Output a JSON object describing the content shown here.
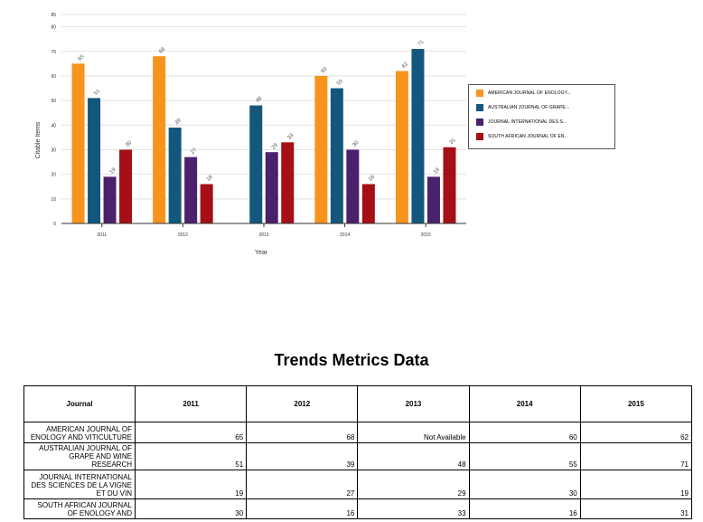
{
  "chart_data": {
    "type": "bar",
    "title": "",
    "xlabel": "Year",
    "ylabel": "Citable Items",
    "ylim": [
      0,
      85
    ],
    "yticks": [
      0,
      10,
      20,
      30,
      40,
      50,
      60,
      70,
      80,
      85
    ],
    "categories": [
      "2011",
      "2012",
      "2013",
      "2014",
      "2015"
    ],
    "legend_position": "right",
    "grid": true,
    "series": [
      {
        "name": "AMERICAN JOURNAL OF ENOLOGY...",
        "color": "#f7941d",
        "values": [
          65,
          68,
          null,
          60,
          62
        ]
      },
      {
        "name": "AUSTRALIAN JOURNAL OF GRAPE...",
        "color": "#14577d",
        "values": [
          51,
          39,
          48,
          55,
          71
        ]
      },
      {
        "name": "JOURNAL INTERNATIONAL DES S...",
        "color": "#4b216b",
        "values": [
          19,
          27,
          29,
          30,
          19
        ]
      },
      {
        "name": "SOUTH AFRICAN JOURNAL OF EN...",
        "color": "#a50f15",
        "values": [
          30,
          16,
          33,
          16,
          31
        ]
      }
    ]
  },
  "table": {
    "title": "Trends Metrics Data",
    "header_journal": "Journal",
    "years": [
      "2011",
      "2012",
      "2013",
      "2014",
      "2015"
    ],
    "rows": [
      {
        "journal": "AMERICAN JOURNAL OF ENOLOGY AND VITICULTURE",
        "values": [
          "65",
          "68",
          "Not Available",
          "60",
          "62"
        ]
      },
      {
        "journal": "AUSTRALIAN JOURNAL OF GRAPE AND WINE RESEARCH",
        "values": [
          "51",
          "39",
          "48",
          "55",
          "71"
        ]
      },
      {
        "journal": "JOURNAL INTERNATIONAL DES SCIENCES DE LA VIGNE ET DU VIN",
        "values": [
          "19",
          "27",
          "29",
          "30",
          "19"
        ]
      },
      {
        "journal": "SOUTH AFRICAN JOURNAL OF ENOLOGY AND",
        "values": [
          "30",
          "16",
          "33",
          "16",
          "31"
        ]
      }
    ]
  }
}
